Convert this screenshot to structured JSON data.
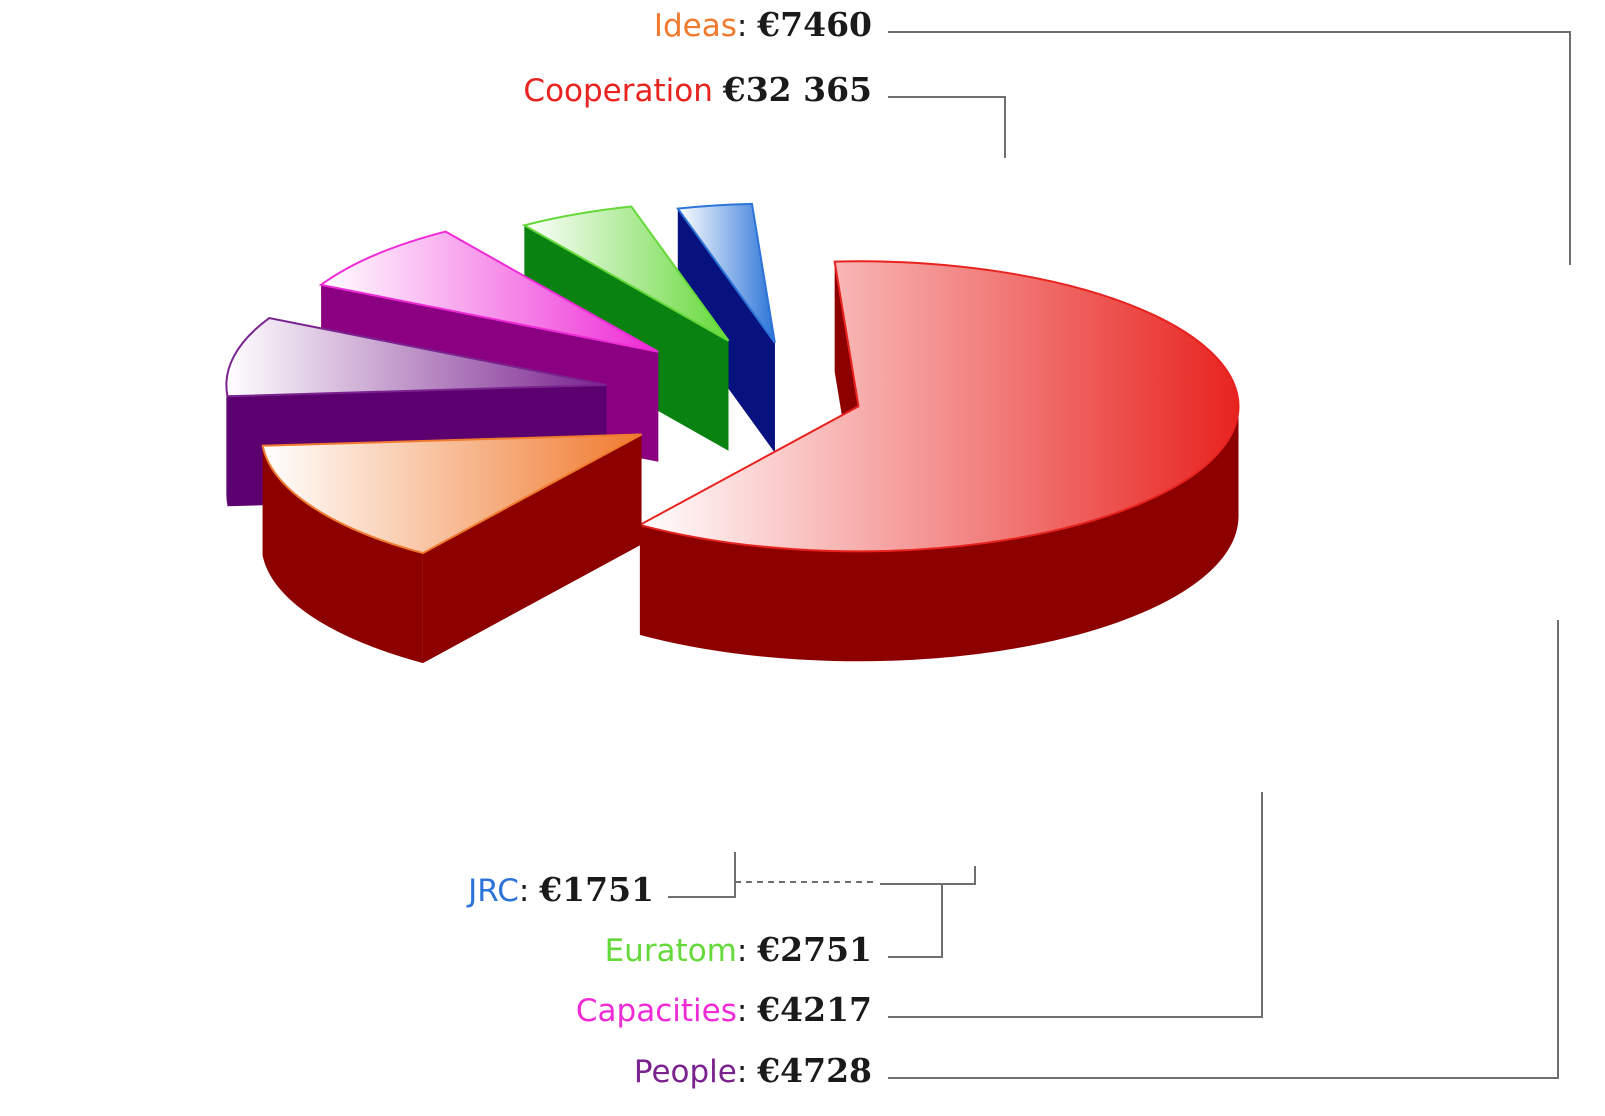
{
  "chart_data": {
    "type": "pie",
    "style": "exploded-3d",
    "currency_symbol": "€",
    "slices": [
      {
        "label": "Cooperation",
        "value": 32365,
        "value_text": "€32 365",
        "separator": " ",
        "color": "#e8231f",
        "side_color": "#8c0000"
      },
      {
        "label": "Ideas",
        "value": 7460,
        "value_text": "€7460",
        "separator": ": ",
        "color": "#f07a2e",
        "side_color": "#8c0000"
      },
      {
        "label": "People",
        "value": 4728,
        "value_text": "€4728",
        "separator": ": ",
        "color": "#7a238e",
        "side_color": "#5c0070"
      },
      {
        "label": "Capacities",
        "value": 4217,
        "value_text": "€4217",
        "separator": ": ",
        "color": "#ee2bd6",
        "side_color": "#8b0080"
      },
      {
        "label": "Euratom",
        "value": 2751,
        "value_text": "€2751",
        "separator": ": ",
        "color": "#66d93a",
        "side_color": "#0a8212"
      },
      {
        "label": "JRC",
        "value": 1751,
        "value_text": "€1751",
        "separator": ": ",
        "color": "#2c74d8",
        "side_color": "#07127f"
      }
    ]
  }
}
